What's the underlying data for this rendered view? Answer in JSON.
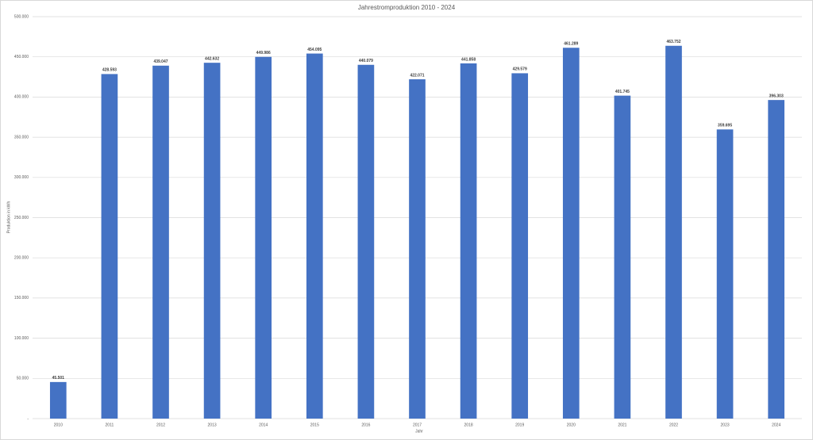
{
  "chart_data": {
    "type": "bar",
    "title": "Jahrestromproduktion 2010 - 2024",
    "x_label": "Jahr",
    "y_label": "Produktion in kWh",
    "categories": [
      "2010",
      "2011",
      "2012",
      "2013",
      "2014",
      "2015",
      "2016",
      "2017",
      "2018",
      "2019",
      "2020",
      "2021",
      "2022",
      "2023",
      "2024"
    ],
    "values": [
      45501,
      428593,
      439047,
      442632,
      449986,
      454095,
      440079,
      422071,
      441858,
      429579,
      461289,
      401745,
      463752,
      359695,
      396303
    ],
    "value_labels": [
      "45.501",
      "428.593",
      "439.047",
      "442.632",
      "449.986",
      "454.095",
      "440.079",
      "422.071",
      "441.858",
      "429.579",
      "461.289",
      "401.745",
      "463.752",
      "359.695",
      "396.303"
    ],
    "color": "#4472c4",
    "ylim": [
      0,
      500000
    ],
    "yticks": [
      {
        "value": 0,
        "label": "-"
      },
      {
        "value": 50000,
        "label": "50.000"
      },
      {
        "value": 100000,
        "label": "100.000"
      },
      {
        "value": 150000,
        "label": "150.000"
      },
      {
        "value": 200000,
        "label": "200.000"
      },
      {
        "value": 250000,
        "label": "250.000"
      },
      {
        "value": 300000,
        "label": "300.000"
      },
      {
        "value": 350000,
        "label": "350.000"
      },
      {
        "value": 400000,
        "label": "400.000"
      },
      {
        "value": 450000,
        "label": "450.000"
      },
      {
        "value": 500000,
        "label": "500.000"
      }
    ],
    "grid": true
  }
}
